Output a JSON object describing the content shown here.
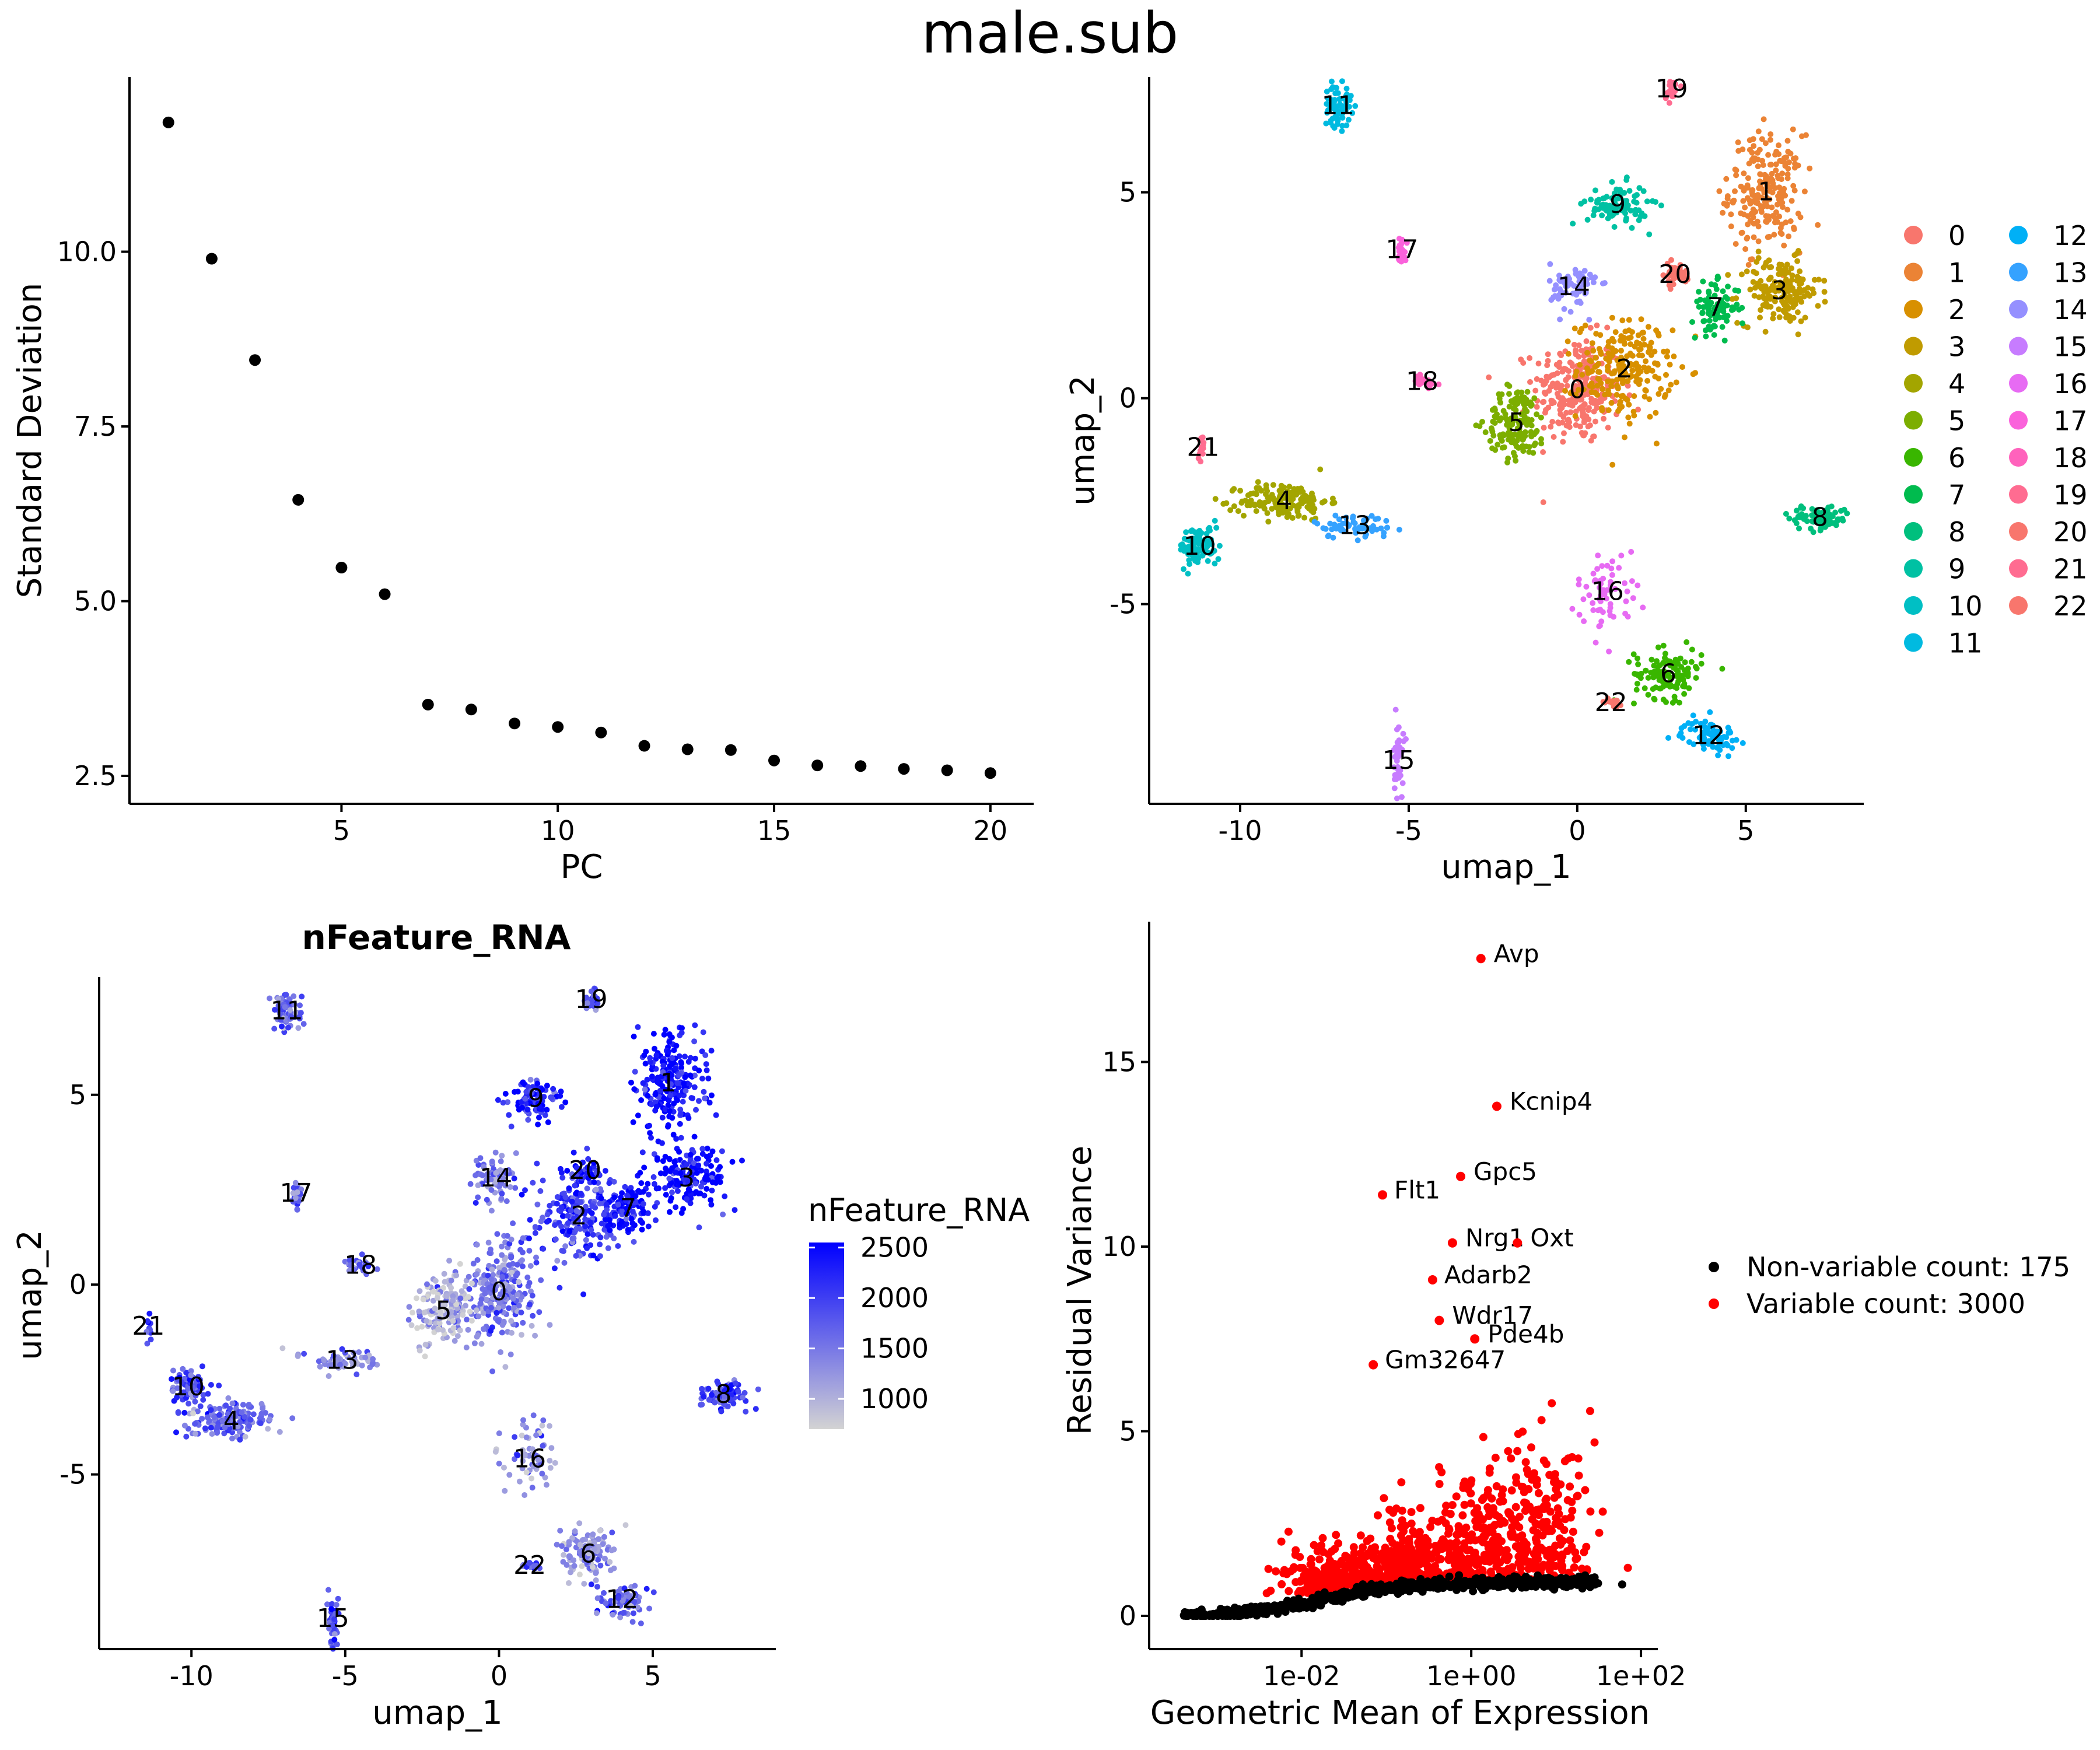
{
  "title": "male.sub",
  "chart_data": [
    {
      "type": "scatter",
      "panel": "elbow",
      "xlabel": "PC",
      "ylabel": "Standard Deviation",
      "xlim": [
        0.1,
        21.0
      ],
      "ylim": [
        2.1,
        12.5
      ],
      "xticks": [
        5,
        10,
        15,
        20
      ],
      "xtick_labels": [
        "5",
        "10",
        "15",
        "20"
      ],
      "yticks": [
        2.5,
        5.0,
        7.5,
        10.0
      ],
      "ytick_labels": [
        "2.5",
        "5.0",
        "7.5",
        "10.0"
      ],
      "grid": false,
      "points": [
        {
          "x": 1,
          "y": 11.85
        },
        {
          "x": 2,
          "y": 9.9
        },
        {
          "x": 3,
          "y": 8.45
        },
        {
          "x": 4,
          "y": 6.45
        },
        {
          "x": 5,
          "y": 5.48
        },
        {
          "x": 6,
          "y": 5.1
        },
        {
          "x": 7,
          "y": 3.52
        },
        {
          "x": 8,
          "y": 3.45
        },
        {
          "x": 9,
          "y": 3.25
        },
        {
          "x": 10,
          "y": 3.2
        },
        {
          "x": 11,
          "y": 3.12
        },
        {
          "x": 12,
          "y": 2.93
        },
        {
          "x": 13,
          "y": 2.88
        },
        {
          "x": 14,
          "y": 2.87
        },
        {
          "x": 15,
          "y": 2.72
        },
        {
          "x": 16,
          "y": 2.65
        },
        {
          "x": 17,
          "y": 2.64
        },
        {
          "x": 18,
          "y": 2.6
        },
        {
          "x": 19,
          "y": 2.58
        },
        {
          "x": 20,
          "y": 2.54
        }
      ]
    },
    {
      "type": "scatter",
      "panel": "umap_clusters",
      "xlabel": "umap_1",
      "ylabel": "umap_2",
      "xlim": [
        -12.7,
        8.5
      ],
      "ylim": [
        -9.85,
        7.8
      ],
      "xticks": [
        -10,
        -5,
        0,
        5
      ],
      "xtick_labels": [
        "-10",
        "-5",
        "0",
        "5"
      ],
      "yticks": [
        -5,
        0,
        5
      ],
      "ytick_labels": [
        "-5",
        "0",
        "5"
      ],
      "legend": {
        "position": "right",
        "columns": 2,
        "entries": [
          {
            "label": "0",
            "color": "#F8766D"
          },
          {
            "label": "1",
            "color": "#EB8335"
          },
          {
            "label": "2",
            "color": "#D89000"
          },
          {
            "label": "3",
            "color": "#C09B00"
          },
          {
            "label": "4",
            "color": "#A3A500"
          },
          {
            "label": "5",
            "color": "#7CAE00"
          },
          {
            "label": "6",
            "color": "#39B600"
          },
          {
            "label": "7",
            "color": "#00BB4E"
          },
          {
            "label": "8",
            "color": "#00BF7D"
          },
          {
            "label": "9",
            "color": "#00C1A3"
          },
          {
            "label": "10",
            "color": "#00BFC4"
          },
          {
            "label": "11",
            "color": "#00BAE0"
          },
          {
            "label": "12",
            "color": "#00B0F6"
          },
          {
            "label": "13",
            "color": "#35A2FF"
          },
          {
            "label": "14",
            "color": "#9590FF"
          },
          {
            "label": "15",
            "color": "#C77CFF"
          },
          {
            "label": "16",
            "color": "#E76BF3"
          },
          {
            "label": "17",
            "color": "#FA62DB"
          },
          {
            "label": "18",
            "color": "#FF62BC"
          },
          {
            "label": "19",
            "color": "#FF6C91"
          },
          {
            "label": "20",
            "color": "#F8766D"
          },
          {
            "label": "21",
            "color": "#FF6C91"
          },
          {
            "label": "22",
            "color": "#F8766D"
          }
        ]
      },
      "clusters": [
        {
          "label": "0",
          "cx": 0.0,
          "cy": 0.2
        },
        {
          "label": "1",
          "cx": 5.6,
          "cy": 5.0
        },
        {
          "label": "2",
          "cx": 1.4,
          "cy": 0.7
        },
        {
          "label": "3",
          "cx": 6.0,
          "cy": 2.6
        },
        {
          "label": "4",
          "cx": -8.7,
          "cy": -2.5
        },
        {
          "label": "5",
          "cx": -1.8,
          "cy": -0.6
        },
        {
          "label": "6",
          "cx": 2.7,
          "cy": -6.7
        },
        {
          "label": "7",
          "cx": 4.1,
          "cy": 2.2
        },
        {
          "label": "8",
          "cx": 7.2,
          "cy": -2.9
        },
        {
          "label": "9",
          "cx": 1.2,
          "cy": 4.7
        },
        {
          "label": "10",
          "cx": -11.2,
          "cy": -3.6
        },
        {
          "label": "11",
          "cx": -7.1,
          "cy": 7.1
        },
        {
          "label": "12",
          "cx": 3.9,
          "cy": -8.2
        },
        {
          "label": "13",
          "cx": -6.6,
          "cy": -3.1
        },
        {
          "label": "14",
          "cx": -0.1,
          "cy": 2.7
        },
        {
          "label": "15",
          "cx": -5.3,
          "cy": -8.8
        },
        {
          "label": "16",
          "cx": 0.9,
          "cy": -4.7
        },
        {
          "label": "17",
          "cx": -5.2,
          "cy": 3.6
        },
        {
          "label": "18",
          "cx": -4.6,
          "cy": 0.4
        },
        {
          "label": "19",
          "cx": 2.8,
          "cy": 7.5
        },
        {
          "label": "20",
          "cx": 2.9,
          "cy": 3.0
        },
        {
          "label": "21",
          "cx": -11.1,
          "cy": -1.2
        },
        {
          "label": "22",
          "cx": 1.0,
          "cy": -7.4
        }
      ]
    },
    {
      "type": "scatter",
      "panel": "umap_nfeature",
      "title": "nFeature_RNA",
      "xlabel": "umap_1",
      "ylabel": "umap_2",
      "xlim": [
        -13.0,
        9.0
      ],
      "ylim": [
        -9.6,
        8.1
      ],
      "xticks": [
        -10,
        -5,
        0,
        5
      ],
      "xtick_labels": [
        "-10",
        "-5",
        "0",
        "5"
      ],
      "yticks": [
        -5,
        0,
        5
      ],
      "ytick_labels": [
        "-5",
        "0",
        "5"
      ],
      "colorbar": {
        "title": "nFeature_RNA",
        "low_color": "#D3D3D3",
        "high_color": "#0000FF",
        "min": 700,
        "max": 2550,
        "ticks": [
          1000,
          1500,
          2000,
          2500
        ],
        "tick_labels": [
          "1000",
          "1500",
          "2000",
          "2500"
        ]
      },
      "clusters": [
        {
          "label": "0",
          "cx": 0.0,
          "cy": -0.2
        },
        {
          "label": "1",
          "cx": 5.5,
          "cy": 5.3
        },
        {
          "label": "2",
          "cx": 2.6,
          "cy": 1.8
        },
        {
          "label": "3",
          "cx": 6.1,
          "cy": 2.8
        },
        {
          "label": "4",
          "cx": -8.7,
          "cy": -3.6
        },
        {
          "label": "5",
          "cx": -1.8,
          "cy": -0.7
        },
        {
          "label": "6",
          "cx": 2.9,
          "cy": -7.1
        },
        {
          "label": "7",
          "cx": 4.2,
          "cy": 2.0
        },
        {
          "label": "8",
          "cx": 7.3,
          "cy": -2.9
        },
        {
          "label": "9",
          "cx": 1.2,
          "cy": 4.9
        },
        {
          "label": "10",
          "cx": -10.1,
          "cy": -2.7
        },
        {
          "label": "11",
          "cx": -6.9,
          "cy": 7.2
        },
        {
          "label": "12",
          "cx": 4.0,
          "cy": -8.3
        },
        {
          "label": "13",
          "cx": -5.1,
          "cy": -2.0
        },
        {
          "label": "14",
          "cx": -0.1,
          "cy": 2.8
        },
        {
          "label": "15",
          "cx": -5.4,
          "cy": -8.8
        },
        {
          "label": "16",
          "cx": 1.0,
          "cy": -4.6
        },
        {
          "label": "17",
          "cx": -6.6,
          "cy": 2.4
        },
        {
          "label": "18",
          "cx": -4.5,
          "cy": 0.5
        },
        {
          "label": "19",
          "cx": 3.0,
          "cy": 7.5
        },
        {
          "label": "20",
          "cx": 2.8,
          "cy": 3.0
        },
        {
          "label": "21",
          "cx": -11.4,
          "cy": -1.1
        },
        {
          "label": "22",
          "cx": 1.0,
          "cy": -7.4
        }
      ]
    },
    {
      "type": "scatter",
      "panel": "variable_features",
      "xlabel": "Geometric Mean of Expression",
      "ylabel": "Residual Variance",
      "x_scale": "log10",
      "xlim": [
        0.00016,
        158
      ],
      "ylim": [
        -0.9,
        18.8
      ],
      "xticks": [
        0.01,
        1,
        100
      ],
      "xtick_labels": [
        "1e-02",
        "1e+00",
        "1e+02"
      ],
      "yticks": [
        0,
        5,
        10,
        15
      ],
      "ytick_labels": [
        "0",
        "5",
        "10",
        "15"
      ],
      "legend": {
        "position": "right",
        "entries": [
          {
            "label": "Non-variable count: 175",
            "color": "#000000"
          },
          {
            "label": "Variable count: 3000",
            "color": "#FF0000"
          }
        ]
      },
      "labeled_genes": [
        {
          "gene": "Avp",
          "x": 1.3,
          "y": 17.8
        },
        {
          "gene": "Kcnip4",
          "x": 2.0,
          "y": 13.8
        },
        {
          "gene": "Gpc5",
          "x": 0.75,
          "y": 11.9
        },
        {
          "gene": "Flt1",
          "x": 0.09,
          "y": 11.4
        },
        {
          "gene": "Nrg1",
          "x": 0.6,
          "y": 10.1
        },
        {
          "gene": "Oxt",
          "x": 3.5,
          "y": 10.1
        },
        {
          "gene": "Adarb2",
          "x": 0.35,
          "y": 9.1
        },
        {
          "gene": "Wdr17",
          "x": 0.42,
          "y": 8.0
        },
        {
          "gene": "Pde4b",
          "x": 1.1,
          "y": 7.5
        },
        {
          "gene": "Gm32647",
          "x": 0.07,
          "y": 6.8
        }
      ]
    }
  ]
}
